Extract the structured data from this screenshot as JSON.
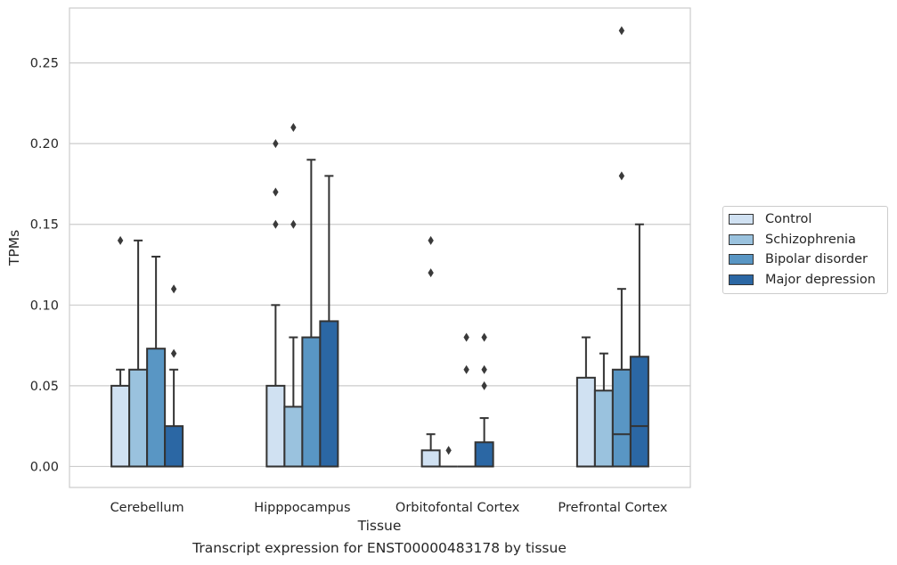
{
  "chart_data": {
    "type": "box",
    "title": "",
    "xlabel": "Tissue",
    "ylabel": "TPMs",
    "caption": "Transcript expression for ENST00000483178 by tissue",
    "ylim": [
      -0.013,
      0.284
    ],
    "yticks": [
      "0.00",
      "0.05",
      "0.10",
      "0.15",
      "0.20",
      "0.25"
    ],
    "grid": "horizontal",
    "legend_position": "right",
    "categories": [
      "Cerebellum",
      "Hipppocampus",
      "Orbitofontal Cortex",
      "Prefrontal Cortex"
    ],
    "series": [
      {
        "name": "Control",
        "color": "#d0e1f2",
        "boxes": [
          {
            "min": 0.0,
            "q1": 0.0,
            "median": 0.0,
            "q3": 0.05,
            "max": 0.06,
            "outliers": [
              0.14
            ]
          },
          {
            "min": 0.0,
            "q1": 0.0,
            "median": 0.0,
            "q3": 0.05,
            "max": 0.1,
            "outliers": [
              0.15,
              0.17,
              0.2
            ]
          },
          {
            "min": 0.0,
            "q1": 0.0,
            "median": 0.0,
            "q3": 0.01,
            "max": 0.02,
            "outliers": [
              0.12,
              0.14
            ]
          },
          {
            "min": 0.0,
            "q1": 0.0,
            "median": 0.0,
            "q3": 0.055,
            "max": 0.08,
            "outliers": []
          }
        ]
      },
      {
        "name": "Schizophrenia",
        "color": "#9ac2de",
        "boxes": [
          {
            "min": 0.0,
            "q1": 0.0,
            "median": 0.0,
            "q3": 0.06,
            "max": 0.14,
            "outliers": []
          },
          {
            "min": 0.0,
            "q1": 0.0,
            "median": 0.0,
            "q3": 0.037,
            "max": 0.08,
            "outliers": [
              0.15,
              0.21
            ]
          },
          {
            "min": 0.0,
            "q1": 0.0,
            "median": 0.0,
            "q3": 0.0,
            "max": 0.0,
            "outliers": [
              0.01
            ]
          },
          {
            "min": 0.0,
            "q1": 0.0,
            "median": 0.0,
            "q3": 0.047,
            "max": 0.07,
            "outliers": []
          }
        ]
      },
      {
        "name": "Bipolar disorder",
        "color": "#5996c4",
        "boxes": [
          {
            "min": 0.0,
            "q1": 0.0,
            "median": 0.0,
            "q3": 0.073,
            "max": 0.13,
            "outliers": []
          },
          {
            "min": 0.0,
            "q1": 0.0,
            "median": 0.0,
            "q3": 0.08,
            "max": 0.19,
            "outliers": []
          },
          {
            "min": 0.0,
            "q1": 0.0,
            "median": 0.0,
            "q3": 0.0,
            "max": 0.0,
            "outliers": [
              0.06,
              0.08
            ]
          },
          {
            "min": 0.0,
            "q1": 0.0,
            "median": 0.02,
            "q3": 0.06,
            "max": 0.11,
            "outliers": [
              0.18,
              0.27
            ]
          }
        ]
      },
      {
        "name": "Major depression",
        "color": "#2b67a4",
        "boxes": [
          {
            "min": 0.0,
            "q1": 0.0,
            "median": 0.0,
            "q3": 0.025,
            "max": 0.06,
            "outliers": [
              0.07,
              0.11
            ]
          },
          {
            "min": 0.0,
            "q1": 0.0,
            "median": 0.0,
            "q3": 0.09,
            "max": 0.18,
            "outliers": []
          },
          {
            "min": 0.0,
            "q1": 0.0,
            "median": 0.0,
            "q3": 0.015,
            "max": 0.03,
            "outliers": [
              0.05,
              0.06,
              0.08
            ]
          },
          {
            "min": 0.0,
            "q1": 0.0,
            "median": 0.025,
            "q3": 0.068,
            "max": 0.15,
            "outliers": []
          }
        ]
      }
    ]
  }
}
